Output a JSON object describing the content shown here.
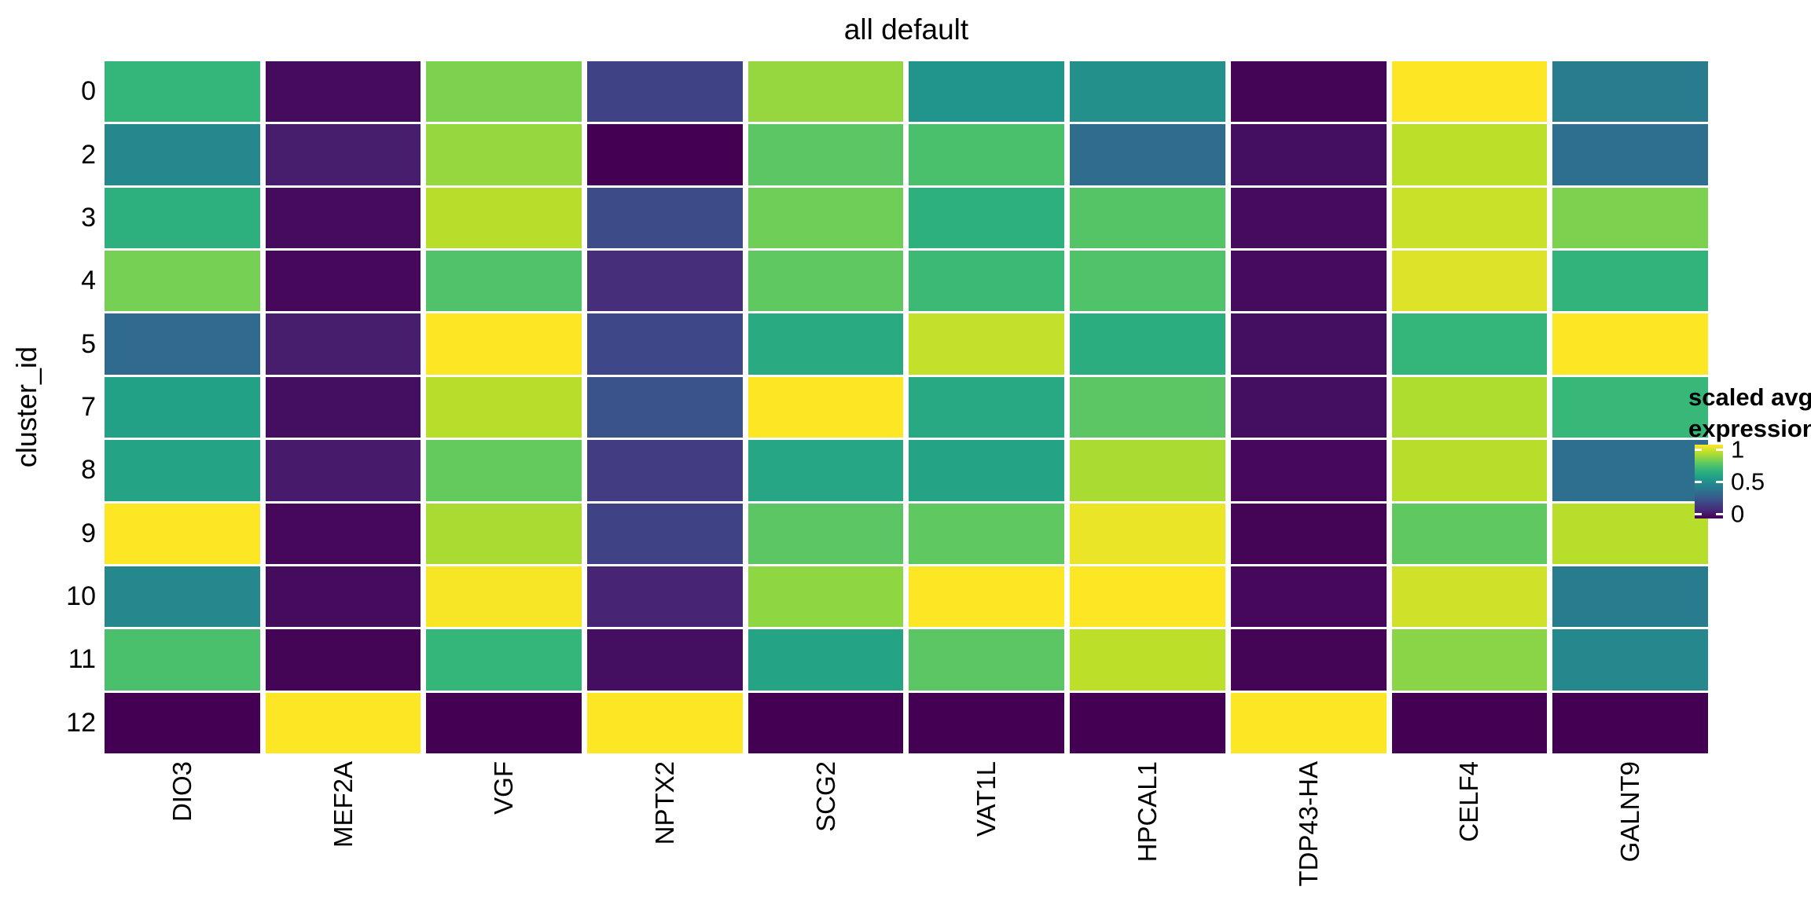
{
  "chart_data": {
    "type": "heatmap",
    "title": "all default",
    "xlabel": "",
    "ylabel": "cluster_id",
    "categories": [
      "DIO3",
      "MEF2A",
      "VGF",
      "NPTX2",
      "SCG2",
      "VAT1L",
      "HPCAL1",
      "TDP43-HA",
      "CELF4",
      "GALNT9"
    ],
    "rows": [
      "0",
      "2",
      "3",
      "4",
      "5",
      "7",
      "8",
      "9",
      "10",
      "11",
      "12"
    ],
    "values": [
      [
        0.66,
        0.03,
        0.8,
        0.2,
        0.84,
        0.52,
        0.5,
        0.01,
        1.0,
        0.42
      ],
      [
        0.47,
        0.08,
        0.84,
        0.0,
        0.74,
        0.71,
        0.35,
        0.04,
        0.9,
        0.36
      ],
      [
        0.63,
        0.03,
        0.89,
        0.23,
        0.78,
        0.63,
        0.73,
        0.03,
        0.92,
        0.8
      ],
      [
        0.79,
        0.02,
        0.72,
        0.13,
        0.75,
        0.68,
        0.72,
        0.03,
        0.95,
        0.65
      ],
      [
        0.34,
        0.08,
        1.0,
        0.22,
        0.61,
        0.91,
        0.62,
        0.04,
        0.66,
        1.0
      ],
      [
        0.57,
        0.04,
        0.89,
        0.26,
        1.0,
        0.6,
        0.74,
        0.04,
        0.88,
        0.67
      ],
      [
        0.58,
        0.07,
        0.76,
        0.18,
        0.59,
        0.58,
        0.87,
        0.02,
        0.89,
        0.36
      ],
      [
        1.0,
        0.02,
        0.87,
        0.2,
        0.74,
        0.75,
        0.97,
        0.01,
        0.75,
        0.89
      ],
      [
        0.47,
        0.03,
        0.99,
        0.1,
        0.83,
        1.0,
        1.0,
        0.02,
        0.93,
        0.42
      ],
      [
        0.71,
        0.01,
        0.66,
        0.04,
        0.58,
        0.74,
        0.9,
        0.01,
        0.82,
        0.47
      ],
      [
        0.0,
        1.0,
        0.0,
        1.0,
        0.0,
        0.0,
        0.0,
        1.0,
        0.0,
        0.0
      ]
    ],
    "value_range": [
      0,
      1
    ],
    "grid": "off",
    "colormap": "viridis",
    "colormap_anchors": [
      "#440154",
      "#482878",
      "#3e4989",
      "#31688e",
      "#26828e",
      "#1f9e89",
      "#35b779",
      "#6ece58",
      "#b5de2b",
      "#fde725"
    ],
    "legend": {
      "position": "right",
      "title_line1": "scaled avg.",
      "title_line2": "expression",
      "ticks": [
        {
          "label": "1",
          "value": 1
        },
        {
          "label": "0.5",
          "value": 0.5
        },
        {
          "label": "0",
          "value": 0
        }
      ]
    }
  }
}
